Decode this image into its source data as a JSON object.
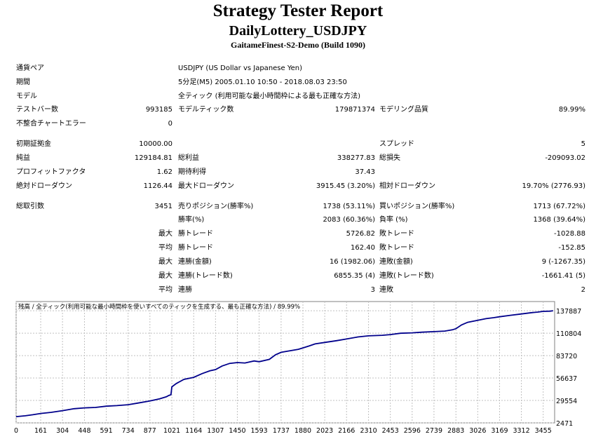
{
  "report": {
    "title": "Strategy Tester Report",
    "ea_name": "DailyLottery_USDJPY",
    "server": "GaitameFinest-S2-Demo (Build 1090)"
  },
  "settings": {
    "symbol_label": "通貨ペア",
    "symbol_value": "USDJPY (US Dollar vs Japanese Yen)",
    "period_label": "期間",
    "period_value": "5分足(M5) 2005.01.10 10:50 - 2018.08.03 23:50",
    "model_label": "モデル",
    "model_value": "全ティック (利用可能な最小時間枠による最も正確な方法)",
    "bars_label": "テストバー数",
    "bars_value": "993185",
    "ticks_label": "モデルティック数",
    "ticks_value": "179871374",
    "quality_label": "モデリング品質",
    "quality_value": "89.99%",
    "mismatch_label": "不整合チャートエラー",
    "mismatch_value": "0"
  },
  "results": {
    "deposit_label": "初期証拠金",
    "deposit_value": "10000.00",
    "spread_label": "スプレッド",
    "spread_value": "5",
    "net_label": "純益",
    "net_value": "129184.81",
    "gross_profit_label": "総利益",
    "gross_profit_value": "338277.83",
    "gross_loss_label": "総損失",
    "gross_loss_value": "-209093.02",
    "pf_label": "プロフィットファクタ",
    "pf_value": "1.62",
    "expected_label": "期待利得",
    "expected_value": "37.43",
    "abs_dd_label": "絶対ドローダウン",
    "abs_dd_value": "1126.44",
    "max_dd_label": "最大ドローダウン",
    "max_dd_value": "3915.45 (3.20%)",
    "rel_dd_label": "相対ドローダウン",
    "rel_dd_value": "19.70% (2776.93)"
  },
  "trades": {
    "total_label": "総取引数",
    "total_value": "3451",
    "short_label": "売りポジション(勝率%)",
    "short_value": "1738 (53.11%)",
    "long_label": "買いポジション(勝率%)",
    "long_value": "1713 (67.72%)",
    "win_label": "勝率(%)",
    "win_value": "2083 (60.36%)",
    "loss_label": "負率 (%)",
    "loss_value": "1368 (39.64%)",
    "max_prefix": "最大",
    "avg_prefix": "平均",
    "max_win_label": "勝トレード",
    "max_win_value": "5726.82",
    "max_loss_label": "敗トレード",
    "max_loss_value": "-1028.88",
    "avg_win_label": "勝トレード",
    "avg_win_value": "162.40",
    "avg_loss_label": "敗トレード",
    "avg_loss_value": "-152.85",
    "cons_win_amt_label": "連勝(金額)",
    "cons_win_amt_value": "16 (1982.06)",
    "cons_loss_amt_label": "連敗(金額)",
    "cons_loss_amt_value": "9 (-1267.35)",
    "cons_profit_label": "連勝(トレード数)",
    "cons_profit_value": "6855.35 (4)",
    "cons_loss_cnt_label": "連敗(トレード数)",
    "cons_loss_cnt_value": "-1661.41 (5)",
    "avg_cons_win_label": "連勝",
    "avg_cons_win_value": "3",
    "avg_cons_loss_label": "連敗",
    "avg_cons_loss_value": "2"
  },
  "chart_data": {
    "type": "line",
    "title": "残高 / 全ティック(利用可能な最小時間枠を使いすべてのティックを生成する、最も正確な方法) / 89.99%",
    "xlabel": "",
    "ylabel": "",
    "x_ticks": [
      0,
      161,
      304,
      448,
      591,
      734,
      877,
      1021,
      1164,
      1307,
      1450,
      1593,
      1737,
      1880,
      2023,
      2166,
      2310,
      2453,
      2596,
      2739,
      2883,
      3026,
      3169,
      3312,
      3455
    ],
    "y_ticks": [
      2471,
      29554,
      56637,
      83720,
      110804,
      137887
    ],
    "xlim": [
      0,
      3530
    ],
    "ylim": [
      2471,
      149000
    ],
    "grid": true,
    "line_color": "#00008b",
    "series": [
      {
        "x": [
          0,
          60,
          110,
          161,
          230,
          304,
          380,
          448,
          520,
          591,
          660,
          734,
          800,
          877,
          940,
          985,
          1000,
          1015,
          1021,
          1050,
          1100,
          1164,
          1220,
          1270,
          1307,
          1350,
          1400,
          1450,
          1500,
          1560,
          1593,
          1660,
          1700,
          1737,
          1800,
          1850,
          1880,
          1920,
          1960,
          2023,
          2100,
          2166,
          2240,
          2310,
          2400,
          2453,
          2520,
          2596,
          2660,
          2739,
          2810,
          2860,
          2883,
          2920,
          2960,
          3026,
          3080,
          3130,
          3169,
          3240,
          3312,
          3380,
          3420,
          3455,
          3500,
          3520
        ],
        "y": [
          10000,
          11000,
          12300,
          13800,
          15200,
          17200,
          19600,
          20600,
          21100,
          22600,
          23300,
          24400,
          26400,
          28900,
          31500,
          34000,
          35500,
          36500,
          46000,
          50000,
          55000,
          57400,
          62000,
          65300,
          66800,
          71200,
          74300,
          75300,
          74800,
          77300,
          76300,
          79200,
          84700,
          87700,
          89700,
          91300,
          93000,
          95300,
          97800,
          99600,
          101700,
          103800,
          106200,
          107600,
          108300,
          109100,
          110700,
          111200,
          112000,
          112700,
          113300,
          114900,
          116200,
          120800,
          123900,
          126400,
          128300,
          129500,
          130600,
          132400,
          134000,
          135600,
          136300,
          137100,
          137400,
          137887
        ]
      }
    ]
  }
}
